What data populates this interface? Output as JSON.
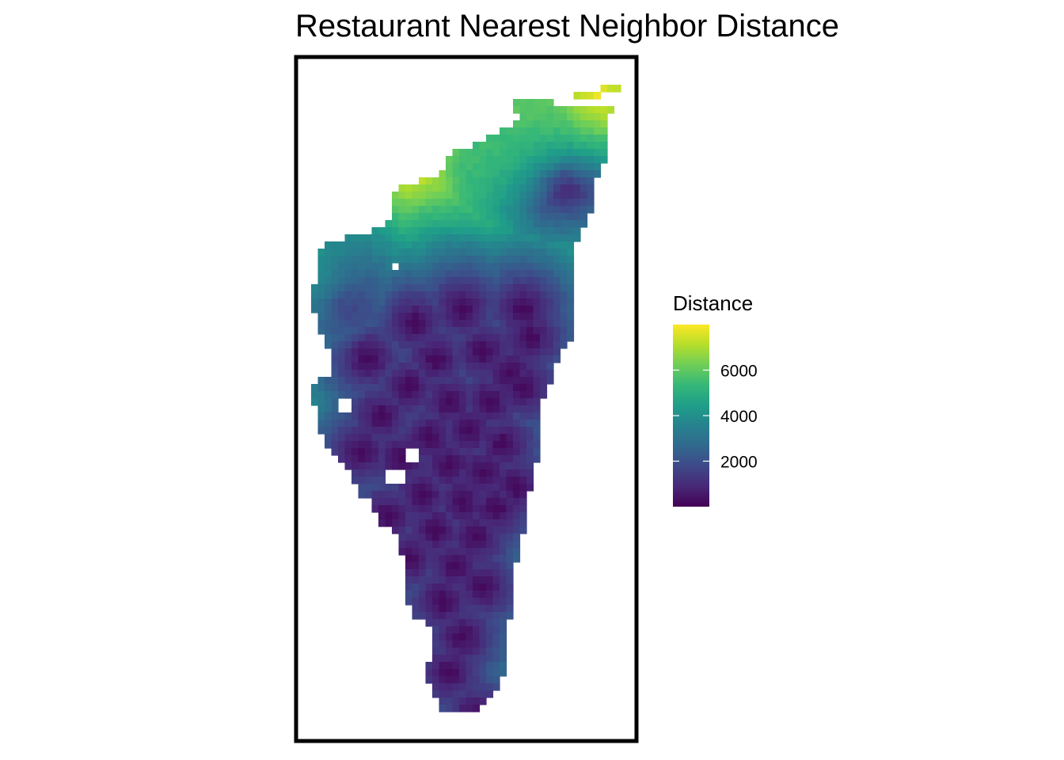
{
  "chart_data": {
    "type": "heatmap",
    "title": "Restaurant Nearest Neighbor Distance",
    "xlabel": "",
    "ylabel": "",
    "grid": false,
    "legend": {
      "title": "Distance",
      "placement": "right",
      "colorscale": "viridis",
      "range": [
        0,
        8000
      ],
      "ticks": [
        2000,
        4000,
        6000
      ],
      "tick_labels": [
        "2000",
        "4000",
        "6000"
      ]
    },
    "colors": {
      "viridis": [
        "#440154",
        "#482878",
        "#3e4989",
        "#31688e",
        "#26828e",
        "#1f9e89",
        "#35b779",
        "#6ece58",
        "#b5de2b",
        "#fde725"
      ],
      "frame": "#000000",
      "background": "#ffffff"
    },
    "grid_shape": {
      "cols": 49,
      "rows": 91
    },
    "high_distance_peaks": [
      {
        "col": 44,
        "row": 1,
        "value": 7800
      },
      {
        "col": 32,
        "row": 3,
        "value": 6000
      },
      {
        "col": 26,
        "row": 8,
        "value": 5500
      },
      {
        "col": 0,
        "row": 25,
        "value": 4300
      }
    ],
    "restaurant_locations": [
      {
        "col": 39,
        "row": 12
      },
      {
        "col": 6,
        "row": 30
      },
      {
        "col": 17,
        "row": 33
      },
      {
        "col": 24,
        "row": 31
      },
      {
        "col": 33,
        "row": 31
      },
      {
        "col": 34,
        "row": 35
      },
      {
        "col": 10,
        "row": 38
      },
      {
        "col": 20,
        "row": 38
      },
      {
        "col": 27,
        "row": 37
      },
      {
        "col": 31,
        "row": 40
      },
      {
        "col": 16,
        "row": 42
      },
      {
        "col": 22,
        "row": 44
      },
      {
        "col": 28,
        "row": 44
      },
      {
        "col": 33,
        "row": 42
      },
      {
        "col": 12,
        "row": 46
      },
      {
        "col": 19,
        "row": 49
      },
      {
        "col": 25,
        "row": 48
      },
      {
        "col": 30,
        "row": 50
      },
      {
        "col": 9,
        "row": 51
      },
      {
        "col": 15,
        "row": 52
      },
      {
        "col": 22,
        "row": 53
      },
      {
        "col": 27,
        "row": 54
      },
      {
        "col": 32,
        "row": 56
      },
      {
        "col": 18,
        "row": 57
      },
      {
        "col": 24,
        "row": 58
      },
      {
        "col": 29,
        "row": 59
      },
      {
        "col": 13,
        "row": 60
      },
      {
        "col": 20,
        "row": 62
      },
      {
        "col": 26,
        "row": 63
      },
      {
        "col": 16,
        "row": 66
      },
      {
        "col": 23,
        "row": 67
      },
      {
        "col": 27,
        "row": 70
      },
      {
        "col": 21,
        "row": 72
      },
      {
        "col": 24,
        "row": 77
      },
      {
        "col": 15,
        "row": 79
      },
      {
        "col": 22,
        "row": 82
      },
      {
        "col": 26,
        "row": 88
      }
    ]
  }
}
